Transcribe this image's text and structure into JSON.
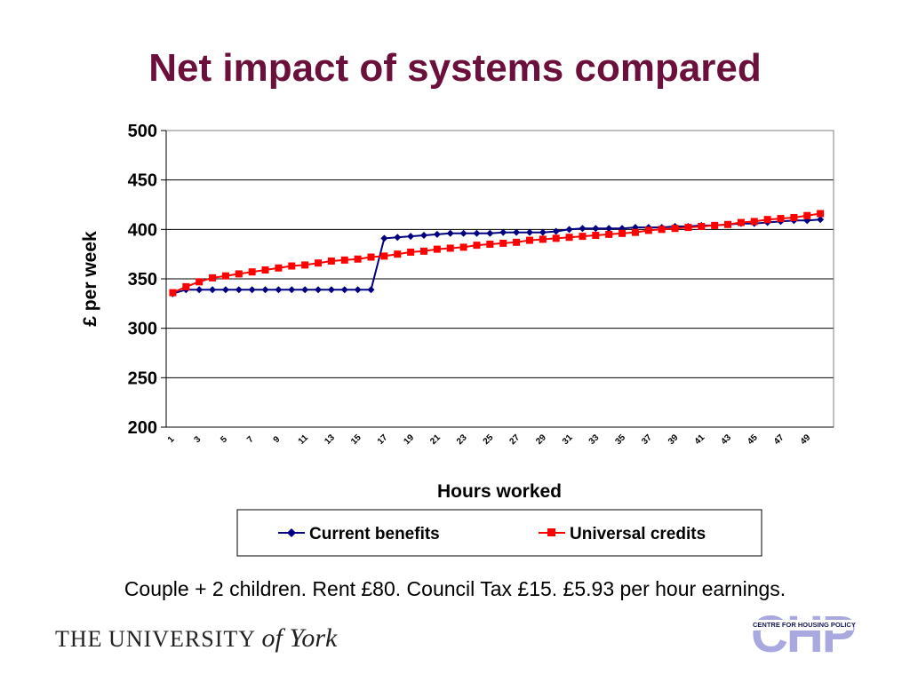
{
  "slide": {
    "title": "Net impact of systems compared",
    "caption": "Couple + 2 children. Rent £80. Council Tax £15. £5.93 per hour earnings.",
    "logos": {
      "york_the": "THE",
      "york_university": "UNIVERSITY",
      "york_script": "of York",
      "chp_letters": "CHP",
      "chp_text": "CENTRE FOR HOUSING POLICY"
    }
  },
  "colors": {
    "title": "#6b0f3b",
    "current": "#000080",
    "universal": "#ff0000",
    "chp": "#a9a9e0"
  },
  "chart_data": {
    "type": "line",
    "title": "",
    "xlabel": "Hours worked",
    "ylabel": "£ per week",
    "ylim": [
      200,
      500
    ],
    "yticks": [
      200,
      250,
      300,
      350,
      400,
      450,
      500
    ],
    "x": [
      1,
      2,
      3,
      4,
      5,
      6,
      7,
      8,
      9,
      10,
      11,
      12,
      13,
      14,
      15,
      16,
      17,
      18,
      19,
      20,
      21,
      22,
      23,
      24,
      25,
      26,
      27,
      28,
      29,
      30,
      31,
      32,
      33,
      34,
      35,
      36,
      37,
      38,
      39,
      40,
      41,
      42,
      43,
      44,
      45,
      46,
      47,
      48,
      49,
      50
    ],
    "xtick_labels": [
      "1",
      "3",
      "5",
      "7",
      "9",
      "11",
      "13",
      "15",
      "17",
      "19",
      "21",
      "23",
      "25",
      "27",
      "29",
      "31",
      "33",
      "35",
      "37",
      "39",
      "41",
      "43",
      "45",
      "47",
      "49"
    ],
    "grid": true,
    "legend_position": "bottom",
    "series": [
      {
        "name": "Current benefits",
        "marker": "diamond",
        "values": [
          335,
          339,
          339,
          339,
          339,
          339,
          339,
          339,
          339,
          339,
          339,
          339,
          339,
          339,
          339,
          339,
          391,
          392,
          393,
          394,
          395,
          396,
          396,
          396,
          396,
          397,
          397,
          397,
          397,
          398,
          400,
          401,
          401,
          401,
          401,
          402,
          402,
          402,
          403,
          403,
          404,
          404,
          405,
          406,
          406,
          407,
          408,
          409,
          409,
          410
        ]
      },
      {
        "name": "Universal credits",
        "marker": "square",
        "values": [
          336,
          342,
          347,
          351,
          353,
          355,
          357,
          359,
          361,
          363,
          364,
          366,
          368,
          369,
          370,
          372,
          373,
          375,
          377,
          378,
          380,
          381,
          382,
          384,
          385,
          386,
          387,
          389,
          390,
          391,
          392,
          393,
          394,
          395,
          396,
          397,
          399,
          400,
          401,
          402,
          403,
          404,
          405,
          407,
          408,
          410,
          411,
          412,
          414,
          416
        ]
      }
    ]
  }
}
